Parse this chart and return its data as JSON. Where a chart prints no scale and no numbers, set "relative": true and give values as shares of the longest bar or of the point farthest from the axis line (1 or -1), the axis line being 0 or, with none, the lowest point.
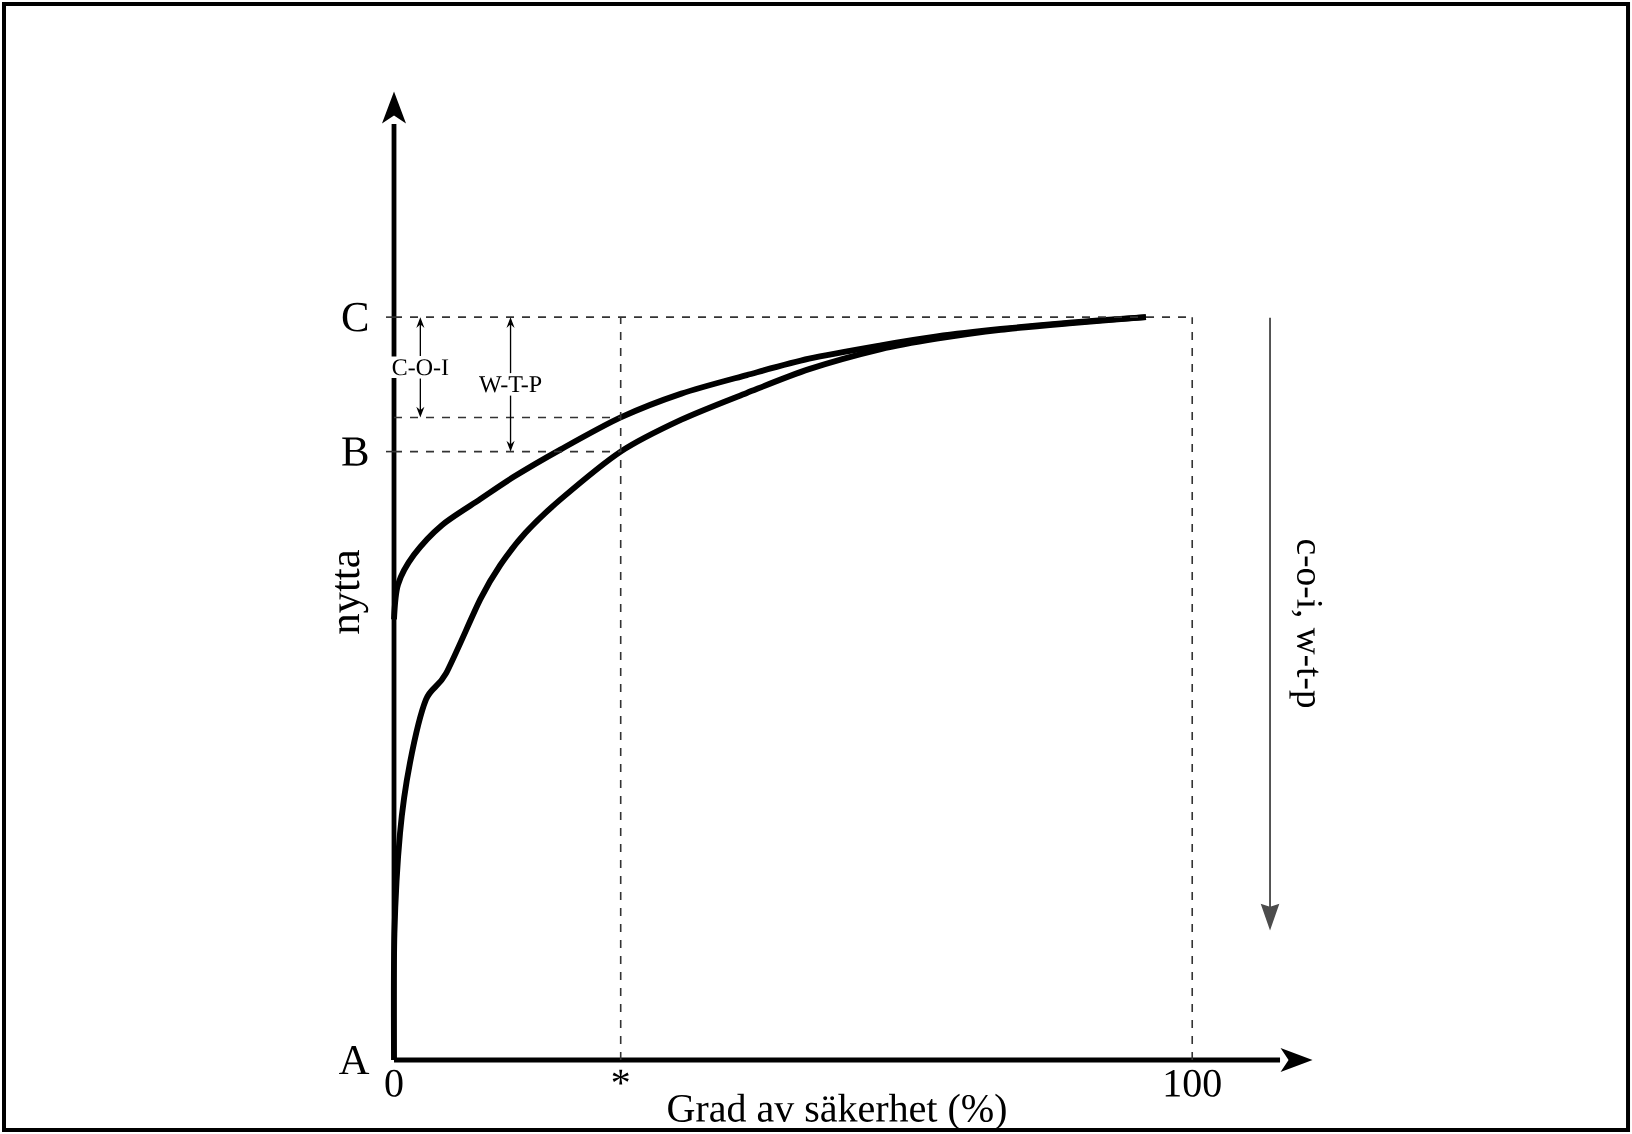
{
  "chart_data": {
    "type": "line",
    "relative": true,
    "xlabel": "Grad av säkerhet (%)",
    "ylabel": "nytta",
    "xlim": [
      0,
      111
    ],
    "xticks": [
      0,
      {
        "value": 28.4,
        "label": "*"
      },
      100
    ],
    "series": [
      {
        "color": "#000000",
        "x": [
          0,
          0.5,
          2.5,
          6,
          10.8,
          15,
          20.9,
          28.4,
          36,
          44.2,
          52,
          61,
          68,
          76,
          85,
          94.2
        ],
        "values": [
          0.593,
          0.64,
          0.68,
          0.72,
          0.755,
          0.785,
          0.822,
          0.865,
          0.897,
          0.922,
          0.944,
          0.962,
          0.974,
          0.984,
          0.993,
          1
        ]
      },
      {
        "color": "#000000",
        "x": [
          0,
          0.05,
          0.75,
          2,
          4,
          6.5,
          10.8,
          13.3,
          16.5,
          20.9,
          28.4,
          36,
          44.2,
          52,
          61,
          68,
          76,
          85,
          94.2
        ],
        "values": [
          0,
          0.17,
          0.305,
          0.4,
          0.485,
          0.52,
          0.62,
          0.666,
          0.71,
          0.755,
          0.819,
          0.862,
          0.898,
          0.93,
          0.957,
          0.971,
          0.983,
          0.992,
          1
        ]
      }
    ],
    "ref_lines": [
      {
        "axis": "y",
        "value": 1,
        "label": "C",
        "line_style": "dashed"
      },
      {
        "axis": "y",
        "value": 0.865,
        "line_style": "dashed"
      },
      {
        "axis": "y",
        "value": 0.819,
        "label": "B",
        "line_style": "dashed"
      },
      {
        "axis": "x",
        "value": 28.4,
        "line_style": "dashed"
      },
      {
        "axis": "x",
        "value": 100,
        "line_style": "dashed"
      }
    ],
    "annotations": [
      "C-O-I",
      "W-T-P",
      "c-o-i, w-t-p",
      {
        "text": "A",
        "x": 0,
        "y": 0
      }
    ]
  }
}
